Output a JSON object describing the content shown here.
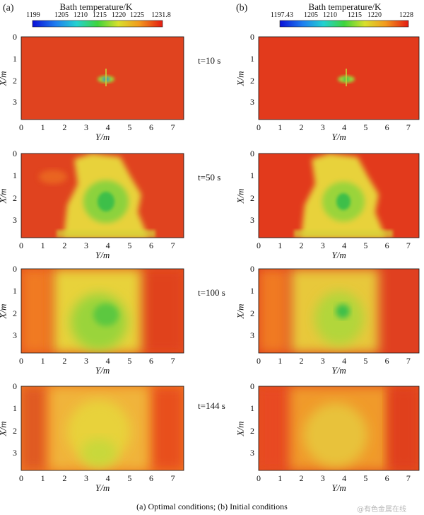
{
  "panels": [
    {
      "label": "(a)",
      "colorbar_title": "Bath temperature/K",
      "colorbar_ticks": [
        "1199",
        "1205",
        "1210",
        "1215",
        "1220",
        "1225",
        "1231.8"
      ]
    },
    {
      "label": "(b)",
      "colorbar_title": "Bath temperature/K",
      "colorbar_ticks": [
        "1197.43",
        "1205",
        "1210",
        "1215",
        "1220",
        "1228"
      ]
    }
  ],
  "times": [
    "t=10 s",
    "t=50 s",
    "t=100 s",
    "t=144 s"
  ],
  "x_axis": {
    "label": "Y/m",
    "ticks": [
      "0",
      "1",
      "2",
      "3",
      "4",
      "5",
      "6",
      "7"
    ]
  },
  "y_axis": {
    "label": "X/m",
    "ticks": [
      "0",
      "1",
      "2",
      "3"
    ]
  },
  "caption": "(a) Optimal conditions; (b) Initial conditions",
  "watermark": "@有色金属在线",
  "colors": {
    "hot": "#e03a1e",
    "warm": "#f07a22",
    "mid": "#e8d23a",
    "cool": "#9ad43a",
    "cold": "#3cbf4a"
  }
}
